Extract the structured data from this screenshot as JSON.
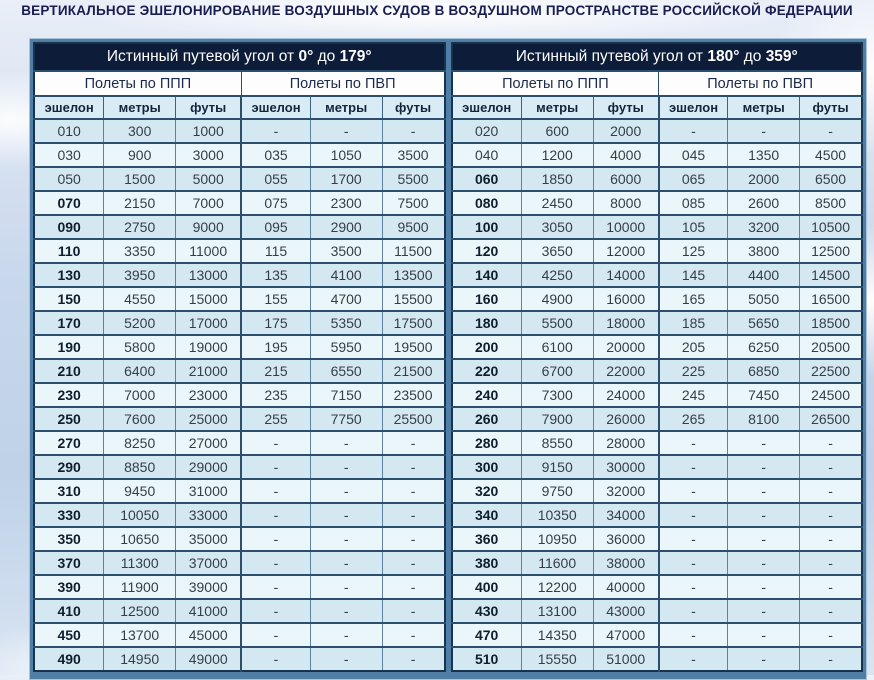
{
  "page": {
    "title": "ВЕРТИКАЛЬНОЕ ЭШЕЛОНИРОВАНИЕ ВОЗДУШНЫХ СУДОВ В ВОЗДУШНОМ ПРОСТРАНСТВЕ РОССИЙСКОЙ ФЕДЕРАЦИИ"
  },
  "colors": {
    "header_navy": "#0d1c39",
    "peach_highlight": "#f8dec4",
    "row_dark": "#d4e8f1",
    "row_light": "#ebf6fa",
    "frame_blue": "#517ea6",
    "grid_navy": "#2c4f6d",
    "title_navy": "#181d52"
  },
  "columns": [
    "эшелон",
    "метры",
    "футы"
  ],
  "halves": [
    {
      "title_parts": [
        "Истинный путевой угол от ",
        "0°",
        " до ",
        "179°"
      ],
      "groups": [
        "Полеты по ППП",
        "Полеты по ПВП"
      ],
      "rows": [
        {
          "ifr": [
            "010",
            "300",
            "1000"
          ],
          "vfr": [
            "-",
            "-",
            "-"
          ],
          "highlight": true
        },
        {
          "ifr": [
            "030",
            "900",
            "3000"
          ],
          "vfr": [
            "035",
            "1050",
            "3500"
          ],
          "highlight": true
        },
        {
          "ifr": [
            "050",
            "1500",
            "5000"
          ],
          "vfr": [
            "055",
            "1700",
            "5500"
          ],
          "highlight": true
        },
        {
          "ifr": [
            "070",
            "2150",
            "7000"
          ],
          "vfr": [
            "075",
            "2300",
            "7500"
          ],
          "highlight": false
        },
        {
          "ifr": [
            "090",
            "2750",
            "9000"
          ],
          "vfr": [
            "095",
            "2900",
            "9500"
          ],
          "highlight": false
        },
        {
          "ifr": [
            "110",
            "3350",
            "11000"
          ],
          "vfr": [
            "115",
            "3500",
            "11500"
          ],
          "highlight": false
        },
        {
          "ifr": [
            "130",
            "3950",
            "13000"
          ],
          "vfr": [
            "135",
            "4100",
            "13500"
          ],
          "highlight": false
        },
        {
          "ifr": [
            "150",
            "4550",
            "15000"
          ],
          "vfr": [
            "155",
            "4700",
            "15500"
          ],
          "highlight": false
        },
        {
          "ifr": [
            "170",
            "5200",
            "17000"
          ],
          "vfr": [
            "175",
            "5350",
            "17500"
          ],
          "highlight": false
        },
        {
          "ifr": [
            "190",
            "5800",
            "19000"
          ],
          "vfr": [
            "195",
            "5950",
            "19500"
          ],
          "highlight": false
        },
        {
          "ifr": [
            "210",
            "6400",
            "21000"
          ],
          "vfr": [
            "215",
            "6550",
            "21500"
          ],
          "highlight": false
        },
        {
          "ifr": [
            "230",
            "7000",
            "23000"
          ],
          "vfr": [
            "235",
            "7150",
            "23500"
          ],
          "highlight": false
        },
        {
          "ifr": [
            "250",
            "7600",
            "25000"
          ],
          "vfr": [
            "255",
            "7750",
            "25500"
          ],
          "highlight": false
        },
        {
          "ifr": [
            "270",
            "8250",
            "27000"
          ],
          "vfr": [
            "-",
            "-",
            "-"
          ],
          "highlight": false
        },
        {
          "ifr": [
            "290",
            "8850",
            "29000"
          ],
          "vfr": [
            "-",
            "-",
            "-"
          ],
          "highlight": false
        },
        {
          "ifr": [
            "310",
            "9450",
            "31000"
          ],
          "vfr": [
            "-",
            "-",
            "-"
          ],
          "highlight": false
        },
        {
          "ifr": [
            "330",
            "10050",
            "33000"
          ],
          "vfr": [
            "-",
            "-",
            "-"
          ],
          "highlight": false
        },
        {
          "ifr": [
            "350",
            "10650",
            "35000"
          ],
          "vfr": [
            "-",
            "-",
            "-"
          ],
          "highlight": false
        },
        {
          "ifr": [
            "370",
            "11300",
            "37000"
          ],
          "vfr": [
            "-",
            "-",
            "-"
          ],
          "highlight": false
        },
        {
          "ifr": [
            "390",
            "11900",
            "39000"
          ],
          "vfr": [
            "-",
            "-",
            "-"
          ],
          "highlight": false
        },
        {
          "ifr": [
            "410",
            "12500",
            "41000"
          ],
          "vfr": [
            "-",
            "-",
            "-"
          ],
          "highlight": false
        },
        {
          "ifr": [
            "450",
            "13700",
            "45000"
          ],
          "vfr": [
            "-",
            "-",
            "-"
          ],
          "highlight": false
        },
        {
          "ifr": [
            "490",
            "14950",
            "49000"
          ],
          "vfr": [
            "-",
            "-",
            "-"
          ],
          "highlight": false
        }
      ]
    },
    {
      "title_parts": [
        "Истинный путевой угол от ",
        "180°",
        " до ",
        "359°"
      ],
      "groups": [
        "Полеты по ППП",
        "Полеты по ПВП"
      ],
      "rows": [
        {
          "ifr": [
            "020",
            "600",
            "2000"
          ],
          "vfr": [
            "-",
            "-",
            "-"
          ],
          "highlight": true
        },
        {
          "ifr": [
            "040",
            "1200",
            "4000"
          ],
          "vfr": [
            "045",
            "1350",
            "4500"
          ],
          "highlight": true
        },
        {
          "ifr": [
            "060",
            "1850",
            "6000"
          ],
          "vfr": [
            "065",
            "2000",
            "6500"
          ],
          "highlight": false
        },
        {
          "ifr": [
            "080",
            "2450",
            "8000"
          ],
          "vfr": [
            "085",
            "2600",
            "8500"
          ],
          "highlight": false
        },
        {
          "ifr": [
            "100",
            "3050",
            "10000"
          ],
          "vfr": [
            "105",
            "3200",
            "10500"
          ],
          "highlight": false
        },
        {
          "ifr": [
            "120",
            "3650",
            "12000"
          ],
          "vfr": [
            "125",
            "3800",
            "12500"
          ],
          "highlight": false
        },
        {
          "ifr": [
            "140",
            "4250",
            "14000"
          ],
          "vfr": [
            "145",
            "4400",
            "14500"
          ],
          "highlight": false
        },
        {
          "ifr": [
            "160",
            "4900",
            "16000"
          ],
          "vfr": [
            "165",
            "5050",
            "16500"
          ],
          "highlight": false
        },
        {
          "ifr": [
            "180",
            "5500",
            "18000"
          ],
          "vfr": [
            "185",
            "5650",
            "18500"
          ],
          "highlight": false
        },
        {
          "ifr": [
            "200",
            "6100",
            "20000"
          ],
          "vfr": [
            "205",
            "6250",
            "20500"
          ],
          "highlight": false
        },
        {
          "ifr": [
            "220",
            "6700",
            "22000"
          ],
          "vfr": [
            "225",
            "6850",
            "22500"
          ],
          "highlight": false
        },
        {
          "ifr": [
            "240",
            "7300",
            "24000"
          ],
          "vfr": [
            "245",
            "7450",
            "24500"
          ],
          "highlight": false
        },
        {
          "ifr": [
            "260",
            "7900",
            "26000"
          ],
          "vfr": [
            "265",
            "8100",
            "26500"
          ],
          "highlight": false
        },
        {
          "ifr": [
            "280",
            "8550",
            "28000"
          ],
          "vfr": [
            "-",
            "-",
            "-"
          ],
          "highlight": false
        },
        {
          "ifr": [
            "300",
            "9150",
            "30000"
          ],
          "vfr": [
            "-",
            "-",
            "-"
          ],
          "highlight": false
        },
        {
          "ifr": [
            "320",
            "9750",
            "32000"
          ],
          "vfr": [
            "-",
            "-",
            "-"
          ],
          "highlight": false
        },
        {
          "ifr": [
            "340",
            "10350",
            "34000"
          ],
          "vfr": [
            "-",
            "-",
            "-"
          ],
          "highlight": false
        },
        {
          "ifr": [
            "360",
            "10950",
            "36000"
          ],
          "vfr": [
            "-",
            "-",
            "-"
          ],
          "highlight": false
        },
        {
          "ifr": [
            "380",
            "11600",
            "38000"
          ],
          "vfr": [
            "-",
            "-",
            "-"
          ],
          "highlight": false
        },
        {
          "ifr": [
            "400",
            "12200",
            "40000"
          ],
          "vfr": [
            "-",
            "-",
            "-"
          ],
          "highlight": false
        },
        {
          "ifr": [
            "430",
            "13100",
            "43000"
          ],
          "vfr": [
            "-",
            "-",
            "-"
          ],
          "highlight": false
        },
        {
          "ifr": [
            "470",
            "14350",
            "47000"
          ],
          "vfr": [
            "-",
            "-",
            "-"
          ],
          "highlight": false
        },
        {
          "ifr": [
            "510",
            "15550",
            "51000"
          ],
          "vfr": [
            "-",
            "-",
            "-"
          ],
          "highlight": false
        }
      ]
    }
  ]
}
